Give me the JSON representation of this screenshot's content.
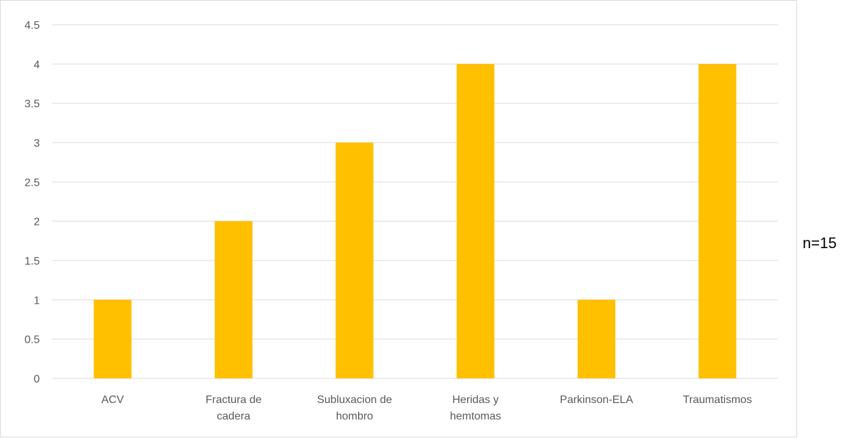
{
  "chart_data": {
    "type": "bar",
    "title": "",
    "xlabel": "",
    "ylabel": "",
    "categories": [
      [
        "ACV"
      ],
      [
        "Fractura de",
        "cadera"
      ],
      [
        "Subluxacion de",
        "hombro"
      ],
      [
        "Heridas y",
        "hemtomas"
      ],
      [
        "Parkinson-ELA"
      ],
      [
        "Traumatismos"
      ]
    ],
    "values": [
      1,
      2,
      3,
      4,
      1,
      4
    ],
    "ylim": [
      0,
      4.5
    ],
    "yticks": [
      "0",
      "0.5",
      "1",
      "1.5",
      "2",
      "2.5",
      "3",
      "3.5",
      "4",
      "4.5"
    ],
    "grid": true,
    "bar_color": "#FFC000",
    "grid_color": "#d9d9d9"
  },
  "annotation": "n=15"
}
